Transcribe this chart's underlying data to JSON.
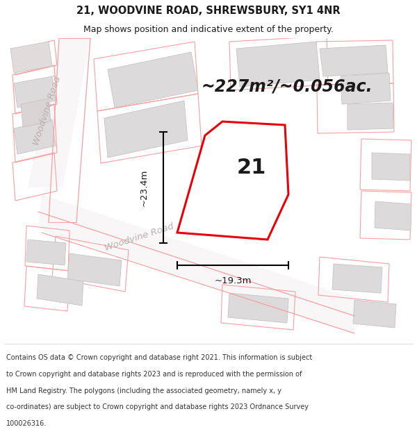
{
  "title": "21, WOODVINE ROAD, SHREWSBURY, SY1 4NR",
  "subtitle": "Map shows position and indicative extent of the property.",
  "area_text": "~227m²/~0.056ac.",
  "number_label": "21",
  "dim_height": "~23.4m",
  "dim_width": "~19.3m",
  "road_label_diag": "Woodvine Road",
  "road_label_vert": "Woodvine Road",
  "footer_lines": [
    "Contains OS data © Crown copyright and database right 2021. This information is subject",
    "to Crown copyright and database rights 2023 and is reproduced with the permission of",
    "HM Land Registry. The polygons (including the associated geometry, namely x, y",
    "co-ordinates) are subject to Crown copyright and database rights 2023 Ordnance Survey",
    "100026316."
  ],
  "bg_color": "#ffffff",
  "map_bg": "#f8f6f6",
  "title_color": "#1a1a1a",
  "red_color": "#e8000a",
  "pink_color": "#f5a0a0",
  "pink_light": "#f0c0c0",
  "gray_building": "#dcdada",
  "gray_building2": "#e8e5e5",
  "road_gray": "#c8c4c4",
  "text_road": "#b8b0b0",
  "footer_color": "#333333",
  "title_fontsize": 10.5,
  "subtitle_fontsize": 9,
  "area_fontsize": 17,
  "number_fontsize": 22,
  "dim_fontsize": 9.5,
  "road_fontsize": 9.5,
  "footer_fontsize": 7.0
}
